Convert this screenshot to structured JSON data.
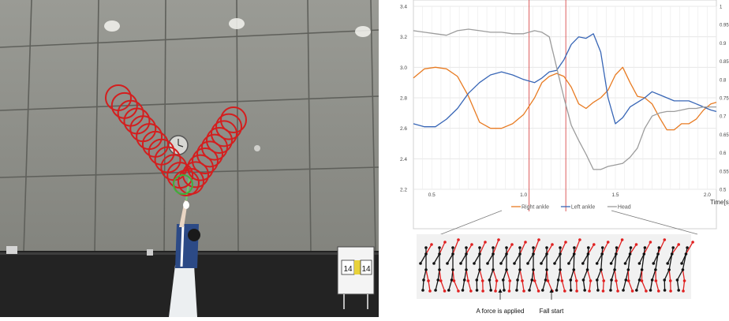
{
  "photo": {
    "scoreboard_left": "14",
    "scoreboard_right": "14"
  },
  "chart_data": {
    "type": "line",
    "title": "",
    "xlabel": "Time[s]",
    "ylabel": "",
    "xlim": [
      0.4,
      2.05
    ],
    "ylim": [
      2.2,
      3.4
    ],
    "y2lim": [
      0.5,
      1.0
    ],
    "x_ticks": [
      0.5,
      1.0,
      1.5,
      2.0
    ],
    "y_ticks": [
      2.2,
      2.4,
      2.6,
      2.8,
      3.0,
      3.2,
      3.4
    ],
    "y2_ticks": [
      0.5,
      0.55,
      0.6,
      0.65,
      0.7,
      0.75,
      0.8,
      0.85,
      0.9,
      0.95,
      1.0
    ],
    "grid": true,
    "legend_position": "bottom",
    "vertical_markers": [
      1.03,
      1.23
    ],
    "colors": {
      "Right ankle": "#e87b22",
      "Left ankle": "#3866b6",
      "Head": "#9c9c9c"
    },
    "series": [
      {
        "name": "Right ankle",
        "x": [
          0.4,
          0.46,
          0.52,
          0.58,
          0.64,
          0.7,
          0.76,
          0.82,
          0.88,
          0.94,
          1.0,
          1.06,
          1.1,
          1.14,
          1.18,
          1.22,
          1.26,
          1.3,
          1.34,
          1.38,
          1.42,
          1.46,
          1.5,
          1.54,
          1.58,
          1.62,
          1.66,
          1.7,
          1.74,
          1.78,
          1.82,
          1.86,
          1.9,
          1.94,
          1.98,
          2.02,
          2.05
        ],
        "values": [
          2.93,
          2.99,
          3.0,
          2.99,
          2.94,
          2.81,
          2.64,
          2.6,
          2.6,
          2.63,
          2.69,
          2.8,
          2.9,
          2.94,
          2.96,
          2.94,
          2.87,
          2.76,
          2.73,
          2.77,
          2.8,
          2.85,
          2.95,
          3.0,
          2.9,
          2.81,
          2.8,
          2.76,
          2.67,
          2.59,
          2.59,
          2.63,
          2.63,
          2.66,
          2.72,
          2.76,
          2.77
        ]
      },
      {
        "name": "Left ankle",
        "x": [
          0.4,
          0.46,
          0.52,
          0.58,
          0.64,
          0.7,
          0.76,
          0.82,
          0.88,
          0.94,
          1.0,
          1.06,
          1.1,
          1.14,
          1.18,
          1.22,
          1.26,
          1.3,
          1.34,
          1.38,
          1.42,
          1.46,
          1.5,
          1.54,
          1.58,
          1.62,
          1.66,
          1.7,
          1.74,
          1.78,
          1.82,
          1.86,
          1.9,
          1.94,
          1.98,
          2.02,
          2.05
        ],
        "values": [
          2.63,
          2.61,
          2.61,
          2.66,
          2.73,
          2.83,
          2.9,
          2.95,
          2.97,
          2.95,
          2.92,
          2.9,
          2.93,
          2.97,
          2.98,
          3.05,
          3.15,
          3.2,
          3.19,
          3.22,
          3.1,
          2.8,
          2.63,
          2.67,
          2.74,
          2.77,
          2.8,
          2.84,
          2.82,
          2.8,
          2.78,
          2.78,
          2.78,
          2.76,
          2.74,
          2.72,
          2.71
        ]
      },
      {
        "name": "Head",
        "x": [
          0.4,
          0.46,
          0.52,
          0.58,
          0.64,
          0.7,
          0.76,
          0.82,
          0.88,
          0.94,
          1.0,
          1.06,
          1.1,
          1.14,
          1.18,
          1.22,
          1.26,
          1.3,
          1.34,
          1.38,
          1.42,
          1.46,
          1.5,
          1.54,
          1.58,
          1.62,
          1.66,
          1.7,
          1.74,
          1.78,
          1.82,
          1.86,
          1.9,
          1.94,
          1.98,
          2.02,
          2.05
        ],
        "values": [
          3.24,
          3.23,
          3.22,
          3.21,
          3.24,
          3.25,
          3.24,
          3.23,
          3.23,
          3.22,
          3.22,
          3.24,
          3.23,
          3.2,
          3.0,
          2.8,
          2.62,
          2.52,
          2.43,
          2.33,
          2.33,
          2.35,
          2.36,
          2.37,
          2.41,
          2.47,
          2.6,
          2.68,
          2.7,
          2.71,
          2.71,
          2.72,
          2.73,
          2.73,
          2.74,
          2.74,
          2.74
        ]
      }
    ],
    "skeleton_captions": [
      "A force is applied",
      "Fall start"
    ]
  }
}
